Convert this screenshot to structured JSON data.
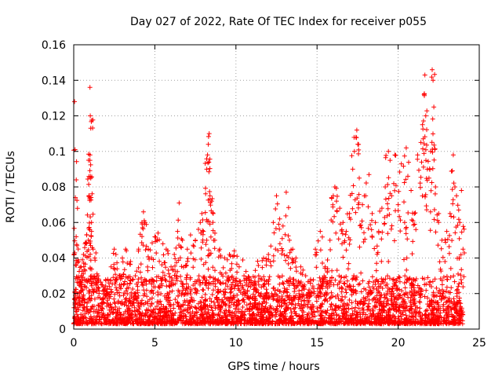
{
  "chart_data": {
    "type": "scatter",
    "title": "Day 027 of 2022, Rate Of TEC Index for receiver p055",
    "xlabel": "GPS time / hours",
    "ylabel": "ROTI / TECUs",
    "xlim": [
      0,
      25
    ],
    "ylim": [
      0,
      0.16
    ],
    "xticks": [
      0,
      5,
      10,
      15,
      20,
      25
    ],
    "yticks": [
      0,
      0.02,
      0.04,
      0.06,
      0.08,
      0.1,
      0.12,
      0.14,
      0.16
    ],
    "xtick_labels": [
      "0",
      "5",
      "10",
      "15",
      "20",
      "25"
    ],
    "ytick_labels": [
      "0",
      "0.02",
      "0.04",
      "0.06",
      "0.08",
      "0.1",
      "0.12",
      "0.14",
      "0.16"
    ],
    "grid": true,
    "marker": "+",
    "color": "#ff0000",
    "series": [
      {
        "points": [
          [
            0.05,
            0.128
          ],
          [
            0.08,
            0.101
          ],
          [
            0.1,
            0.074
          ],
          [
            0.15,
            0.052
          ],
          [
            0.2,
            0.047
          ],
          [
            0.3,
            0.038
          ],
          [
            0.35,
            0.028
          ],
          [
            0.45,
            0.035
          ],
          [
            0.5,
            0.025
          ],
          [
            0.6,
            0.042
          ],
          [
            0.7,
            0.048
          ],
          [
            0.8,
            0.053
          ],
          [
            0.9,
            0.05
          ],
          [
            0.95,
            0.075
          ],
          [
            1.0,
            0.136
          ],
          [
            1.02,
            0.12
          ],
          [
            1.05,
            0.113
          ],
          [
            1.0,
            0.095
          ],
          [
            1.05,
            0.085
          ],
          [
            1.0,
            0.074
          ],
          [
            1.1,
            0.06
          ],
          [
            1.1,
            0.055
          ],
          [
            1.2,
            0.045
          ],
          [
            1.3,
            0.04
          ],
          [
            1.5,
            0.03
          ],
          [
            1.7,
            0.025
          ],
          [
            1.9,
            0.022
          ],
          [
            2.1,
            0.028
          ],
          [
            2.3,
            0.035
          ],
          [
            2.5,
            0.045
          ],
          [
            2.6,
            0.042
          ],
          [
            2.8,
            0.03
          ],
          [
            3.0,
            0.04
          ],
          [
            3.2,
            0.045
          ],
          [
            3.5,
            0.038
          ],
          [
            3.8,
            0.03
          ],
          [
            4.0,
            0.045
          ],
          [
            4.2,
            0.06
          ],
          [
            4.3,
            0.066
          ],
          [
            4.4,
            0.06
          ],
          [
            4.6,
            0.045
          ],
          [
            4.8,
            0.04
          ],
          [
            5.0,
            0.052
          ],
          [
            5.2,
            0.054
          ],
          [
            5.5,
            0.048
          ],
          [
            5.7,
            0.045
          ],
          [
            6.0,
            0.035
          ],
          [
            6.2,
            0.042
          ],
          [
            6.4,
            0.055
          ],
          [
            6.5,
            0.071
          ],
          [
            6.7,
            0.05
          ],
          [
            7.0,
            0.045
          ],
          [
            7.2,
            0.053
          ],
          [
            7.5,
            0.05
          ],
          [
            7.8,
            0.06
          ],
          [
            7.9,
            0.065
          ],
          [
            8.0,
            0.055
          ],
          [
            8.2,
            0.05
          ],
          [
            8.2,
            0.09
          ],
          [
            8.25,
            0.098
          ],
          [
            8.3,
            0.104
          ],
          [
            8.35,
            0.11
          ],
          [
            8.4,
            0.075
          ],
          [
            8.5,
            0.072
          ],
          [
            8.6,
            0.065
          ],
          [
            8.7,
            0.05
          ],
          [
            9.0,
            0.045
          ],
          [
            9.3,
            0.04
          ],
          [
            9.6,
            0.042
          ],
          [
            9.9,
            0.044
          ],
          [
            10.2,
            0.035
          ],
          [
            10.5,
            0.03
          ],
          [
            10.8,
            0.028
          ],
          [
            11.1,
            0.025
          ],
          [
            11.4,
            0.03
          ],
          [
            11.7,
            0.04
          ],
          [
            12.0,
            0.042
          ],
          [
            12.3,
            0.06
          ],
          [
            12.5,
            0.075
          ],
          [
            12.7,
            0.062
          ],
          [
            12.9,
            0.058
          ],
          [
            13.1,
            0.077
          ],
          [
            13.3,
            0.05
          ],
          [
            13.5,
            0.045
          ],
          [
            13.7,
            0.04
          ],
          [
            14.0,
            0.035
          ],
          [
            14.3,
            0.03
          ],
          [
            14.6,
            0.028
          ],
          [
            14.9,
            0.045
          ],
          [
            15.2,
            0.055
          ],
          [
            15.5,
            0.035
          ],
          [
            15.8,
            0.05
          ],
          [
            16.0,
            0.075
          ],
          [
            16.1,
            0.08
          ],
          [
            16.2,
            0.072
          ],
          [
            16.4,
            0.068
          ],
          [
            16.6,
            0.06
          ],
          [
            16.8,
            0.055
          ],
          [
            17.0,
            0.065
          ],
          [
            17.2,
            0.09
          ],
          [
            17.3,
            0.1
          ],
          [
            17.4,
            0.108
          ],
          [
            17.45,
            0.112
          ],
          [
            17.6,
            0.085
          ],
          [
            17.8,
            0.07
          ],
          [
            18.0,
            0.075
          ],
          [
            18.2,
            0.087
          ],
          [
            18.4,
            0.065
          ],
          [
            18.6,
            0.06
          ],
          [
            18.8,
            0.055
          ],
          [
            19.0,
            0.068
          ],
          [
            19.2,
            0.08
          ],
          [
            19.4,
            0.1
          ],
          [
            19.5,
            0.095
          ],
          [
            19.6,
            0.075
          ],
          [
            19.8,
            0.098
          ],
          [
            20.0,
            0.07
          ],
          [
            20.2,
            0.093
          ],
          [
            20.4,
            0.06
          ],
          [
            20.5,
            0.102
          ],
          [
            20.6,
            0.086
          ],
          [
            20.8,
            0.078
          ],
          [
            21.0,
            0.065
          ],
          [
            21.2,
            0.098
          ],
          [
            21.4,
            0.105
          ],
          [
            21.5,
            0.115
          ],
          [
            21.6,
            0.132
          ],
          [
            21.65,
            0.143
          ],
          [
            21.7,
            0.12
          ],
          [
            21.8,
            0.09
          ],
          [
            21.9,
            0.085
          ],
          [
            22.0,
            0.1
          ],
          [
            22.1,
            0.146
          ],
          [
            22.15,
            0.14
          ],
          [
            22.2,
            0.125
          ],
          [
            22.3,
            0.08
          ],
          [
            22.5,
            0.065
          ],
          [
            22.7,
            0.05
          ],
          [
            23.0,
            0.055
          ],
          [
            23.2,
            0.065
          ],
          [
            23.4,
            0.098
          ],
          [
            23.5,
            0.08
          ],
          [
            23.6,
            0.075
          ],
          [
            23.8,
            0.06
          ],
          [
            23.9,
            0.078
          ],
          [
            24.0,
            0.045
          ]
        ],
        "baseline_band": {
          "x_range": [
            0,
            24
          ],
          "y_floor": 0.003,
          "y_typical_max": 0.03
        }
      }
    ]
  }
}
